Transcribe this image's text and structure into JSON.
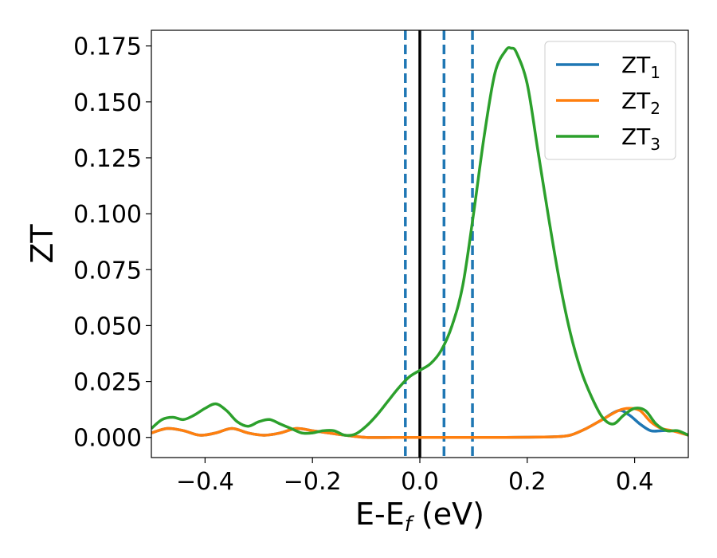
{
  "chart_data": {
    "type": "line",
    "xlabel": "E-E",
    "xlabel_sub": "f",
    "xlabel_unit": " (eV)",
    "ylabel": "ZT",
    "xlim": [
      -0.5,
      0.5
    ],
    "ylim": [
      -0.009,
      0.182
    ],
    "grid": false,
    "legend_position": "top-right",
    "x_ticks": [
      -0.4,
      -0.2,
      0.0,
      0.2,
      0.4
    ],
    "x_tick_labels": [
      "−0.4",
      "−0.2",
      "0.0",
      "0.2",
      "0.4"
    ],
    "y_ticks": [
      0.0,
      0.025,
      0.05,
      0.075,
      0.1,
      0.125,
      0.15,
      0.175
    ],
    "y_tick_labels": [
      "0.000",
      "0.025",
      "0.050",
      "0.075",
      "0.100",
      "0.125",
      "0.150",
      "0.175"
    ],
    "vertical_lines": [
      {
        "x": -0.027,
        "style": "dashed",
        "color": "#1f77b4"
      },
      {
        "x": 0.0,
        "style": "solid",
        "color": "#000000"
      },
      {
        "x": 0.045,
        "style": "dashed",
        "color": "#1f77b4"
      },
      {
        "x": 0.098,
        "style": "dashed",
        "color": "#1f77b4"
      }
    ],
    "series": [
      {
        "name": "ZT",
        "name_sub": "1",
        "color": "#1f77b4",
        "x": [
          -0.5,
          -0.47,
          -0.44,
          -0.41,
          -0.38,
          -0.35,
          -0.32,
          -0.29,
          -0.26,
          -0.23,
          -0.2,
          -0.17,
          -0.14,
          -0.1,
          -0.05,
          0.0,
          0.05,
          0.1,
          0.15,
          0.2,
          0.25,
          0.28,
          0.31,
          0.34,
          0.37,
          0.39,
          0.41,
          0.43,
          0.45,
          0.47,
          0.5
        ],
        "y": [
          0.002,
          0.004,
          0.003,
          0.001,
          0.002,
          0.004,
          0.002,
          0.001,
          0.002,
          0.004,
          0.003,
          0.002,
          0.001,
          0.0,
          0.0,
          0.0,
          0.0,
          0.0,
          0.0,
          0.0001,
          0.0003,
          0.001,
          0.004,
          0.008,
          0.012,
          0.01,
          0.006,
          0.003,
          0.003,
          0.003,
          0.001
        ]
      },
      {
        "name": "ZT",
        "name_sub": "2",
        "color": "#ff7f0e",
        "x": [
          -0.5,
          -0.47,
          -0.44,
          -0.41,
          -0.38,
          -0.35,
          -0.32,
          -0.29,
          -0.26,
          -0.23,
          -0.2,
          -0.17,
          -0.14,
          -0.1,
          -0.05,
          0.0,
          0.05,
          0.1,
          0.15,
          0.2,
          0.25,
          0.28,
          0.31,
          0.34,
          0.37,
          0.39,
          0.41,
          0.43,
          0.45,
          0.47,
          0.5
        ],
        "y": [
          0.002,
          0.004,
          0.003,
          0.001,
          0.002,
          0.004,
          0.002,
          0.001,
          0.002,
          0.004,
          0.003,
          0.002,
          0.001,
          0.0,
          0.0,
          0.0,
          0.0,
          0.0,
          0.0,
          0.0001,
          0.0003,
          0.001,
          0.004,
          0.008,
          0.012,
          0.013,
          0.012,
          0.007,
          0.004,
          0.003,
          0.001
        ]
      },
      {
        "name": "ZT",
        "name_sub": "3",
        "color": "#2ca02c",
        "x": [
          -0.5,
          -0.48,
          -0.46,
          -0.44,
          -0.42,
          -0.4,
          -0.38,
          -0.36,
          -0.34,
          -0.32,
          -0.3,
          -0.28,
          -0.26,
          -0.24,
          -0.22,
          -0.2,
          -0.18,
          -0.16,
          -0.14,
          -0.12,
          -0.1,
          -0.08,
          -0.06,
          -0.04,
          -0.02,
          0.0,
          0.02,
          0.04,
          0.06,
          0.08,
          0.1,
          0.12,
          0.14,
          0.16,
          0.17,
          0.18,
          0.2,
          0.22,
          0.24,
          0.26,
          0.28,
          0.3,
          0.32,
          0.34,
          0.36,
          0.38,
          0.4,
          0.42,
          0.44,
          0.46,
          0.48,
          0.5
        ],
        "y": [
          0.004,
          0.008,
          0.009,
          0.008,
          0.01,
          0.013,
          0.015,
          0.012,
          0.007,
          0.005,
          0.007,
          0.008,
          0.006,
          0.004,
          0.002,
          0.002,
          0.003,
          0.003,
          0.001,
          0.0015,
          0.005,
          0.01,
          0.016,
          0.022,
          0.027,
          0.03,
          0.033,
          0.039,
          0.05,
          0.068,
          0.1,
          0.135,
          0.163,
          0.173,
          0.174,
          0.172,
          0.158,
          0.128,
          0.098,
          0.07,
          0.047,
          0.03,
          0.018,
          0.009,
          0.006,
          0.01,
          0.013,
          0.012,
          0.006,
          0.003,
          0.003,
          0.001
        ]
      }
    ]
  }
}
